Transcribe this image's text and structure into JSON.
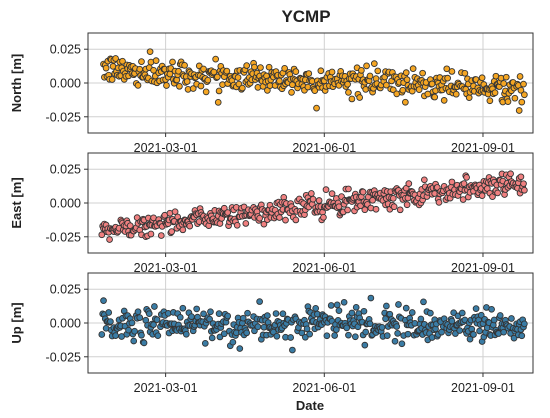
{
  "chart_data": {
    "type": "scatter",
    "title": "YCMP",
    "xlabel": "Date",
    "xlim": [
      "2021-01-15",
      "2021-09-30"
    ],
    "x_ticks": [
      "2021-03-01",
      "2021-06-01",
      "2021-09-01"
    ],
    "grid": true,
    "marker": {
      "edge_color": "#333333"
    },
    "panels": [
      {
        "name": "north",
        "ylabel": "North [m]",
        "ylim": [
          -0.037,
          0.037
        ],
        "y_ticks": [
          "0.025",
          "0.000",
          "-0.025"
        ],
        "y_tick_values": [
          0.025,
          0.0,
          -0.025
        ],
        "color": "#F5A623",
        "start_date": "2021-01-23",
        "trend": [
          {
            "date": "2021-01-23",
            "value": 0.01
          },
          {
            "date": "2021-09-25",
            "value": -0.005
          }
        ],
        "noise": 0.005
      },
      {
        "name": "east",
        "ylabel": "East [m]",
        "ylim": [
          -0.037,
          0.037
        ],
        "y_ticks": [
          "0.025",
          "0.000",
          "-0.025"
        ],
        "y_tick_values": [
          0.025,
          0.0,
          -0.025
        ],
        "color": "#F08080",
        "start_date": "2021-01-23",
        "trend": [
          {
            "date": "2021-01-23",
            "value": -0.02
          },
          {
            "date": "2021-04-15",
            "value": -0.008
          },
          {
            "date": "2021-09-25",
            "value": 0.015
          }
        ],
        "noise": 0.004
      },
      {
        "name": "up",
        "ylabel": "Up [m]",
        "ylim": [
          -0.037,
          0.037
        ],
        "y_ticks": [
          "0.025",
          "0.000",
          "-0.025"
        ],
        "y_tick_values": [
          0.025,
          0.0,
          -0.025
        ],
        "color": "#3A7CA5",
        "start_date": "2021-01-23",
        "trend": [
          {
            "date": "2021-01-23",
            "value": 0.0
          },
          {
            "date": "2021-09-25",
            "value": -0.002
          }
        ],
        "noise": 0.006
      }
    ]
  }
}
